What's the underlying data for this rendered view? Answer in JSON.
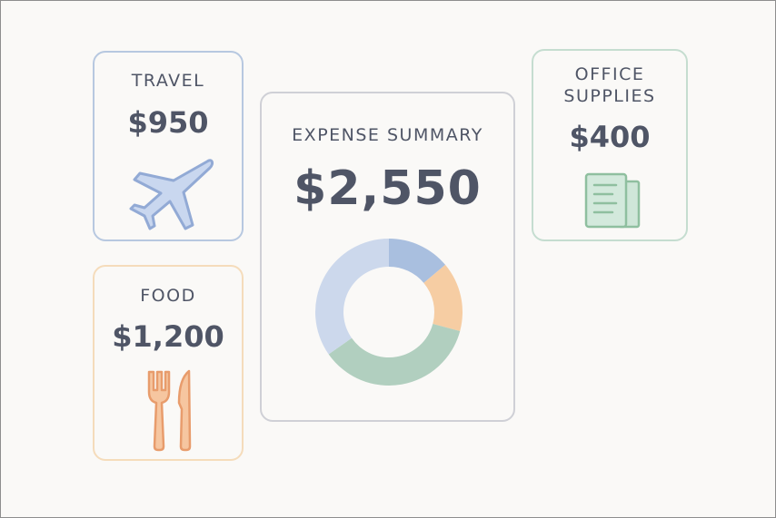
{
  "travel": {
    "label": "TRAVEL",
    "amount": "$950",
    "icon": "airplane-icon"
  },
  "food": {
    "label": "FOOD",
    "amount": "$1,200",
    "icon": "fork-knife-icon"
  },
  "office": {
    "label_line1": "OFFICE",
    "label_line2": "SUPPLIES",
    "amount": "$400",
    "icon": "document-icon"
  },
  "summary": {
    "label": "EXPENSE SUMMARY",
    "amount": "$2,550",
    "segment_colors": [
      "#a9bfdf",
      "#f6cda3",
      "#b1cfbf",
      "#ccd8ec"
    ]
  },
  "colors": {
    "travel_border": "#b7c8e0",
    "food_border": "#f5dcbb",
    "office_border": "#c5ddd0",
    "summary_border": "#cfd0d6",
    "text": "#4f5566"
  }
}
